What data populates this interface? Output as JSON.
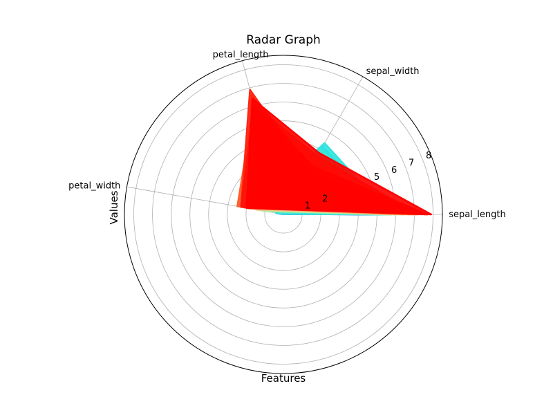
{
  "chart_data": {
    "type": "radar",
    "title": "Radar Graph",
    "xlabel": "Features",
    "ylabel": "Values",
    "features": [
      "sepal_length",
      "sepal_width",
      "petal_length",
      "petal_width"
    ],
    "axis_angles_deg": [
      0,
      60,
      105,
      170
    ],
    "radial_ticks": [
      "1",
      "2",
      "5",
      "6",
      "7",
      "8"
    ],
    "rmax": 8.5,
    "grid": true,
    "colormap": [
      "#4a3dff",
      "#2196f3",
      "#1ee0e8",
      "#8ff0b0",
      "#c8e896",
      "#ffb27a",
      "#ff7a3d",
      "#ff0000"
    ],
    "series": [
      {
        "values": [
          4.3,
          3.0,
          1.1,
          0.1
        ]
      },
      {
        "values": [
          4.4,
          2.9,
          1.4,
          0.2
        ]
      },
      {
        "values": [
          4.5,
          2.3,
          1.3,
          0.3
        ]
      },
      {
        "values": [
          4.6,
          3.4,
          1.4,
          0.3
        ]
      },
      {
        "values": [
          4.7,
          3.2,
          1.3,
          0.2
        ]
      },
      {
        "values": [
          4.8,
          3.0,
          1.4,
          0.1
        ]
      },
      {
        "values": [
          4.9,
          3.1,
          1.5,
          0.1
        ]
      },
      {
        "values": [
          5.0,
          3.6,
          1.4,
          0.2
        ]
      },
      {
        "values": [
          5.0,
          3.4,
          1.6,
          0.4
        ]
      },
      {
        "values": [
          5.1,
          3.5,
          1.4,
          0.2
        ]
      },
      {
        "values": [
          5.1,
          3.8,
          1.9,
          0.4
        ]
      },
      {
        "values": [
          5.2,
          4.1,
          1.5,
          0.1
        ]
      },
      {
        "values": [
          5.4,
          3.9,
          1.7,
          0.4
        ]
      },
      {
        "values": [
          5.5,
          4.2,
          1.4,
          0.2
        ]
      },
      {
        "values": [
          5.7,
          4.4,
          1.5,
          0.4
        ]
      },
      {
        "values": [
          5.8,
          4.0,
          1.2,
          0.2
        ]
      },
      {
        "values": [
          5.0,
          2.0,
          3.5,
          1.0
        ]
      },
      {
        "values": [
          5.1,
          2.5,
          3.0,
          1.1
        ]
      },
      {
        "values": [
          5.5,
          2.4,
          3.8,
          1.1
        ]
      },
      {
        "values": [
          5.6,
          2.9,
          3.6,
          1.3
        ]
      },
      {
        "values": [
          5.7,
          2.8,
          4.1,
          1.3
        ]
      },
      {
        "values": [
          5.8,
          2.7,
          4.1,
          1.0
        ]
      },
      {
        "values": [
          6.0,
          2.2,
          4.0,
          1.0
        ]
      },
      {
        "values": [
          6.1,
          2.8,
          4.7,
          1.2
        ]
      },
      {
        "values": [
          6.2,
          2.2,
          4.5,
          1.5
        ]
      },
      {
        "values": [
          6.4,
          2.9,
          4.3,
          1.3
        ]
      },
      {
        "values": [
          6.6,
          3.0,
          4.4,
          1.4
        ]
      },
      {
        "values": [
          6.7,
          3.1,
          4.7,
          1.5
        ]
      },
      {
        "values": [
          6.9,
          3.1,
          4.9,
          1.5
        ]
      },
      {
        "values": [
          7.0,
          3.2,
          4.7,
          1.4
        ]
      },
      {
        "values": [
          5.6,
          2.8,
          4.9,
          2.0
        ]
      },
      {
        "values": [
          5.8,
          2.7,
          5.1,
          1.9
        ]
      },
      {
        "values": [
          6.0,
          3.0,
          4.8,
          1.8
        ]
      },
      {
        "values": [
          6.3,
          2.5,
          5.0,
          1.9
        ]
      },
      {
        "values": [
          6.4,
          2.8,
          5.6,
          2.1
        ]
      },
      {
        "values": [
          6.5,
          3.0,
          5.8,
          2.2
        ]
      },
      {
        "values": [
          6.7,
          3.3,
          5.7,
          2.5
        ]
      },
      {
        "values": [
          6.8,
          3.2,
          5.9,
          2.3
        ]
      },
      {
        "values": [
          6.9,
          3.1,
          5.4,
          2.1
        ]
      },
      {
        "values": [
          7.1,
          3.0,
          5.9,
          2.1
        ]
      },
      {
        "values": [
          7.2,
          3.6,
          6.1,
          2.5
        ]
      },
      {
        "values": [
          7.4,
          2.8,
          6.1,
          1.9
        ]
      },
      {
        "values": [
          7.6,
          3.0,
          6.6,
          2.1
        ]
      },
      {
        "values": [
          7.7,
          2.6,
          6.9,
          2.3
        ]
      },
      {
        "values": [
          7.7,
          3.0,
          6.1,
          2.3
        ]
      },
      {
        "values": [
          7.9,
          3.8,
          6.4,
          2.0
        ]
      }
    ]
  }
}
